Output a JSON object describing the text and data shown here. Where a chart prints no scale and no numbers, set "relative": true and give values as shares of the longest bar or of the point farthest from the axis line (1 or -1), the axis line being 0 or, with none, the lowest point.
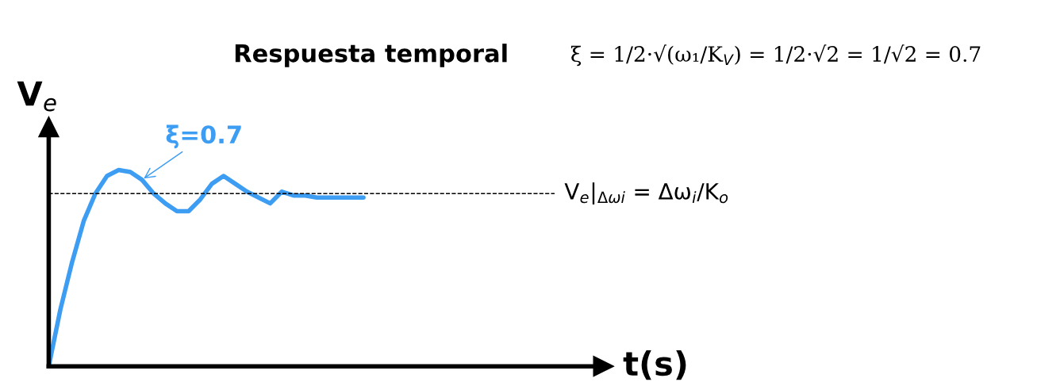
{
  "chart_data": {
    "type": "line",
    "relative": true,
    "title": "Respuesta temporal",
    "ylabel": "V$_{e}$",
    "annotations": [
      "ξ = 1/2·√(ω₁/K$_{V}$) = 1/2·√2 = 1/√2 = 0.7",
      "t(s)"
    ],
    "categories": [
      null,
      null,
      null,
      null,
      null,
      null,
      null,
      null,
      null,
      null,
      null,
      null,
      null,
      null,
      null,
      null,
      null,
      null,
      null,
      null,
      null,
      null,
      null,
      null,
      null,
      null,
      null,
      null
    ],
    "series": [
      {
        "name": "ξ=0.7",
        "color": "#3d9df3",
        "values": [
          0,
          0.29,
          0.53,
          0.74,
          0.88,
          0.97,
          1.0,
          0.99,
          0.95,
          0.88,
          0.83,
          0.79,
          0.79,
          0.85,
          0.93,
          0.97,
          0.93,
          0.89,
          0.86,
          0.83,
          0.89,
          0.87,
          0.87,
          0.86,
          0.86,
          0.86,
          0.86,
          0.86
        ]
      }
    ],
    "ref_lines": [
      {
        "axis": "y",
        "value": 0.88,
        "label": "V$_{e}$|$_{Δωi}$ = Δω$_{i}$/K$_{o}$",
        "color": "#000000",
        "line_style": "dashed"
      }
    ],
    "legend": false,
    "marker": "none",
    "line_style": "solid"
  }
}
